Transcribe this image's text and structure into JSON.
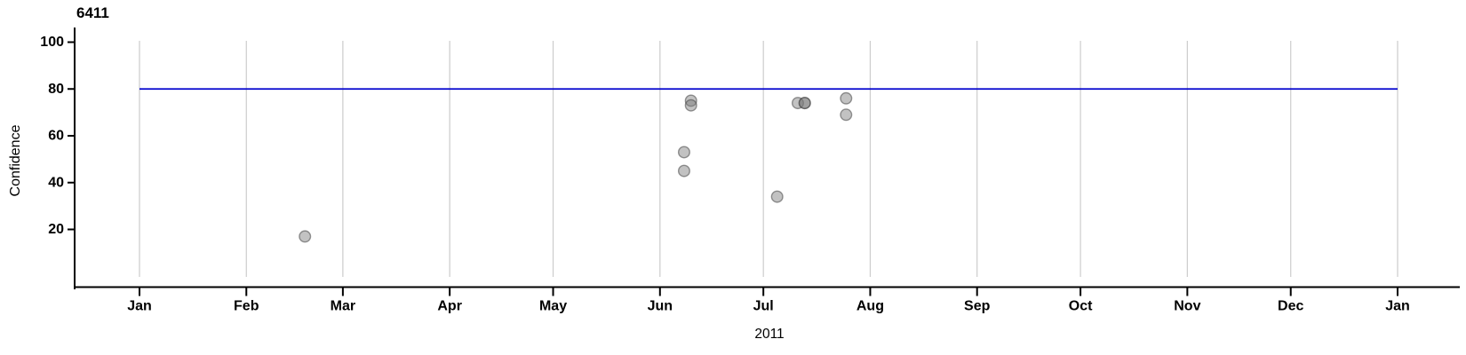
{
  "chart_data": {
    "type": "scatter",
    "title": "6411",
    "ylabel": "Confidence",
    "xlabel": "2011",
    "ylim": [
      0,
      100
    ],
    "yticks": [
      20,
      40,
      60,
      80,
      100
    ],
    "x_range": [
      "2011-01-01",
      "2012-01-01"
    ],
    "x_tick_labels": [
      "Jan",
      "Feb",
      "Mar",
      "Apr",
      "May",
      "Jun",
      "Jul",
      "Aug",
      "Sep",
      "Oct",
      "Nov",
      "Dec",
      "Jan"
    ],
    "grid": "vertical monthly gridlines only",
    "legend": "none",
    "reference_line": {
      "value": 80
    },
    "points": [
      {
        "date": "2011-02-18",
        "confidence": 17
      },
      {
        "date": "2011-06-08",
        "confidence": 53
      },
      {
        "date": "2011-06-08",
        "confidence": 45
      },
      {
        "date": "2011-06-10",
        "confidence": 75
      },
      {
        "date": "2011-06-10",
        "confidence": 73
      },
      {
        "date": "2011-07-05",
        "confidence": 34
      },
      {
        "date": "2011-07-11",
        "confidence": 74
      },
      {
        "date": "2011-07-13",
        "confidence": 74
      },
      {
        "date": "2011-07-13",
        "confidence": 74
      },
      {
        "date": "2011-07-25",
        "confidence": 76
      },
      {
        "date": "2011-07-25",
        "confidence": 69
      }
    ],
    "colors": {
      "reference_line": "#0000CD",
      "point_fill": "rgba(120,120,120,0.45)",
      "point_stroke": "rgba(70,70,70,0.55)",
      "gridline": "#CCCCCC",
      "axis": "#000000",
      "background": "#FFFFFF"
    }
  }
}
